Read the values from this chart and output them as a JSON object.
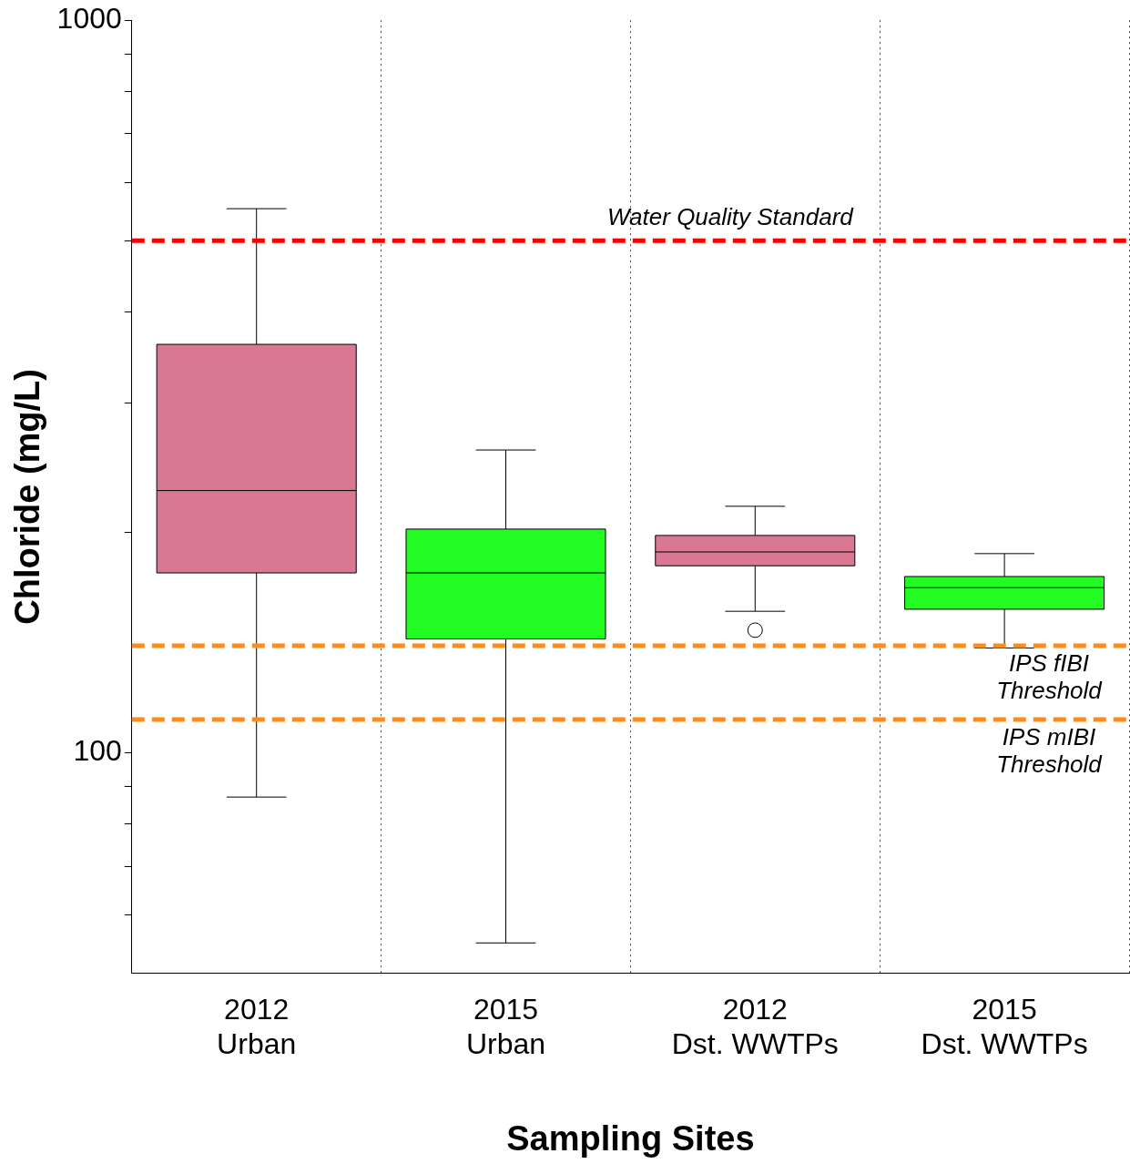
{
  "chart_data": {
    "type": "box",
    "xlabel": "Sampling Sites",
    "ylabel": "Chloride (mg/L)",
    "categories": [
      "2012 Urban",
      "2015 Urban",
      "2012 Dst. WWTPs",
      "2015 Dst. WWTPs"
    ],
    "colors": [
      "#d87892",
      "#22fc22",
      "#d87892",
      "#22fc22"
    ],
    "boxes": [
      {
        "low": 87,
        "q1": 176,
        "median": 228,
        "q3": 361,
        "high": 553
      },
      {
        "low": 55,
        "q1": 143,
        "median": 176,
        "q3": 202,
        "high": 259
      },
      {
        "low": 156,
        "q1": 180,
        "median": 188,
        "q3": 198,
        "high": 217,
        "outliers": [
          147
        ]
      },
      {
        "low": 139,
        "q1": 157,
        "median": 168,
        "q3": 174,
        "high": 187
      }
    ],
    "log": true,
    "ylim": [
      50,
      1000
    ],
    "yticks": [
      {
        "value": 60,
        "label": null
      },
      {
        "value": 70,
        "label": null
      },
      {
        "value": 80,
        "label": null
      },
      {
        "value": 90,
        "label": null
      },
      100,
      {
        "value": 200,
        "label": null
      },
      {
        "value": 300,
        "label": null
      },
      {
        "value": 400,
        "label": null
      },
      {
        "value": 500,
        "label": null
      },
      {
        "value": 600,
        "label": null
      },
      {
        "value": 700,
        "label": null
      },
      {
        "value": 800,
        "label": null
      },
      {
        "value": 900,
        "label": null
      },
      1000
    ],
    "grid": "x",
    "legend": false,
    "ref_lines": [
      {
        "axis": "y",
        "value": 500,
        "label": "Water Quality Standard",
        "color": "#ff0000",
        "line_style": "dashed"
      },
      {
        "axis": "y",
        "value": 140,
        "label": "IPS fIBI Threshold",
        "color": "#ff8c1a",
        "line_style": "dashed"
      },
      {
        "axis": "y",
        "value": 111,
        "label": "IPS mIBI Threshold",
        "color": "#ff8c1a",
        "line_style": "dashed"
      }
    ]
  }
}
